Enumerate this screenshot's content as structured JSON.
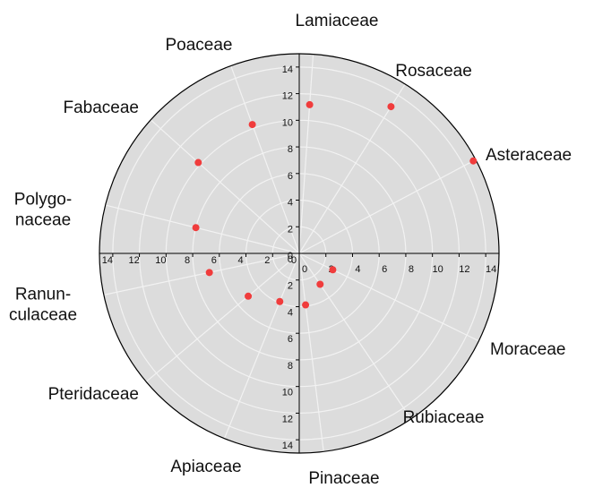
{
  "chart_data": {
    "type": "polar_scatter",
    "categories": [
      "Lamiaceae",
      "Rosaceae",
      "Asteraceae",
      "Moraceae",
      "Rubiaceae",
      "Pinaceae",
      "Apiaceae",
      "Pteridaceae",
      "Ranun-\nculaceae",
      "Polygo-\nnaceae",
      "Fabaceae",
      "Poaceae"
    ],
    "theta": [
      4,
      32,
      62,
      116,
      146,
      173,
      202,
      230,
      258,
      284,
      312,
      340
    ],
    "values": [
      11.2,
      13,
      14.8,
      2.8,
      2.8,
      3.9,
      3.9,
      5,
      6.9,
      8,
      10.2,
      10.3
    ],
    "color": "#f03c3c",
    "rlim": [
      0,
      15
    ],
    "rticks": [
      0,
      2,
      4,
      6,
      8,
      10,
      12,
      14
    ],
    "grid": true
  }
}
